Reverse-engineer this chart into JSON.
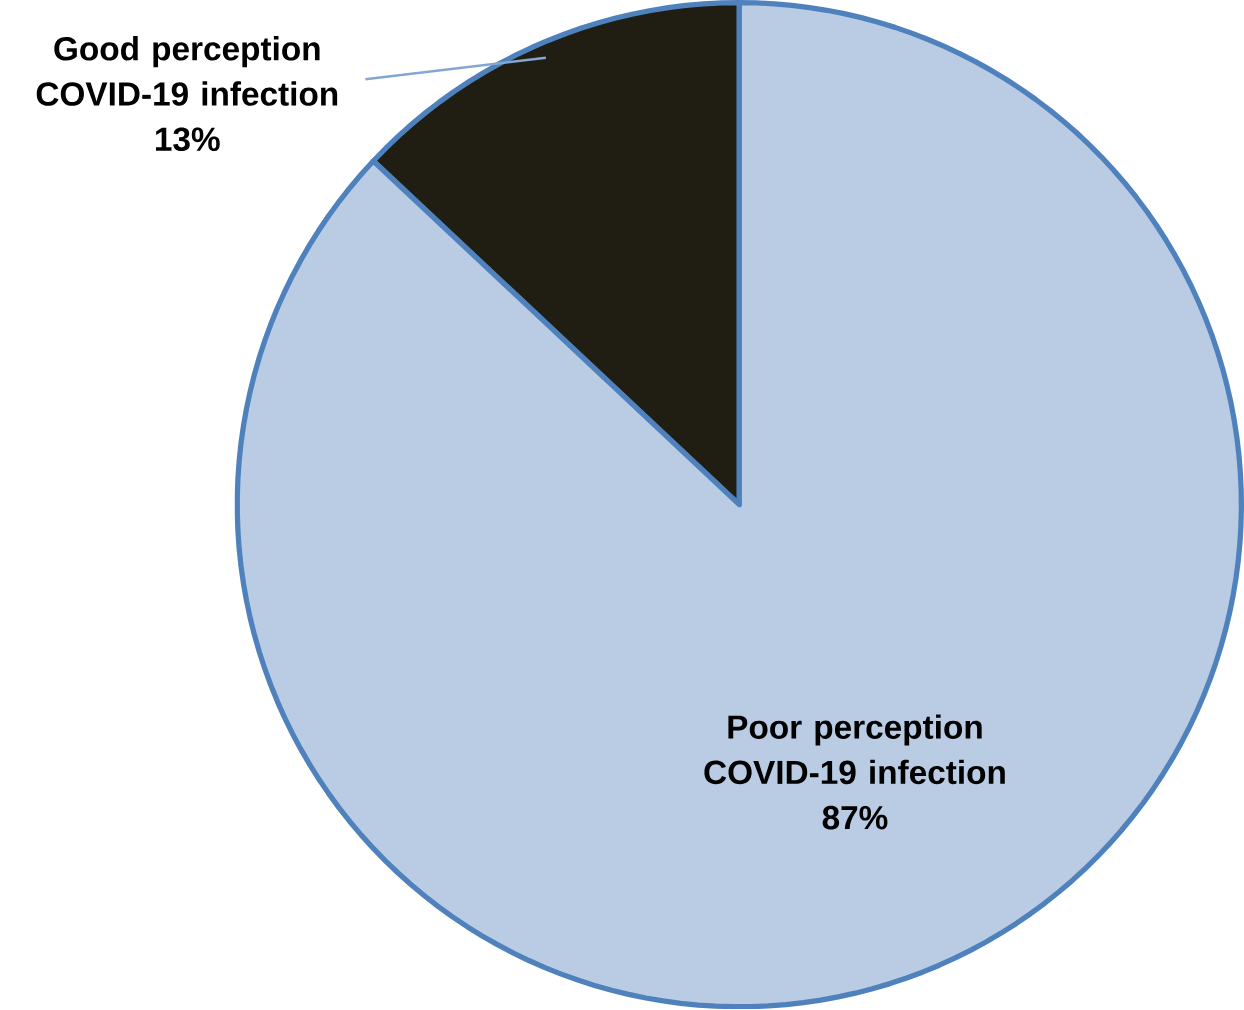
{
  "chart_data": {
    "type": "pie",
    "categories": [
      "Good perception COVID-19 infection",
      "Poor perception COVID-19 infection"
    ],
    "values": [
      13,
      87
    ],
    "value_labels": [
      "13%",
      "87%"
    ],
    "colors": [
      "#201d13",
      "#b9cce4"
    ]
  }
}
